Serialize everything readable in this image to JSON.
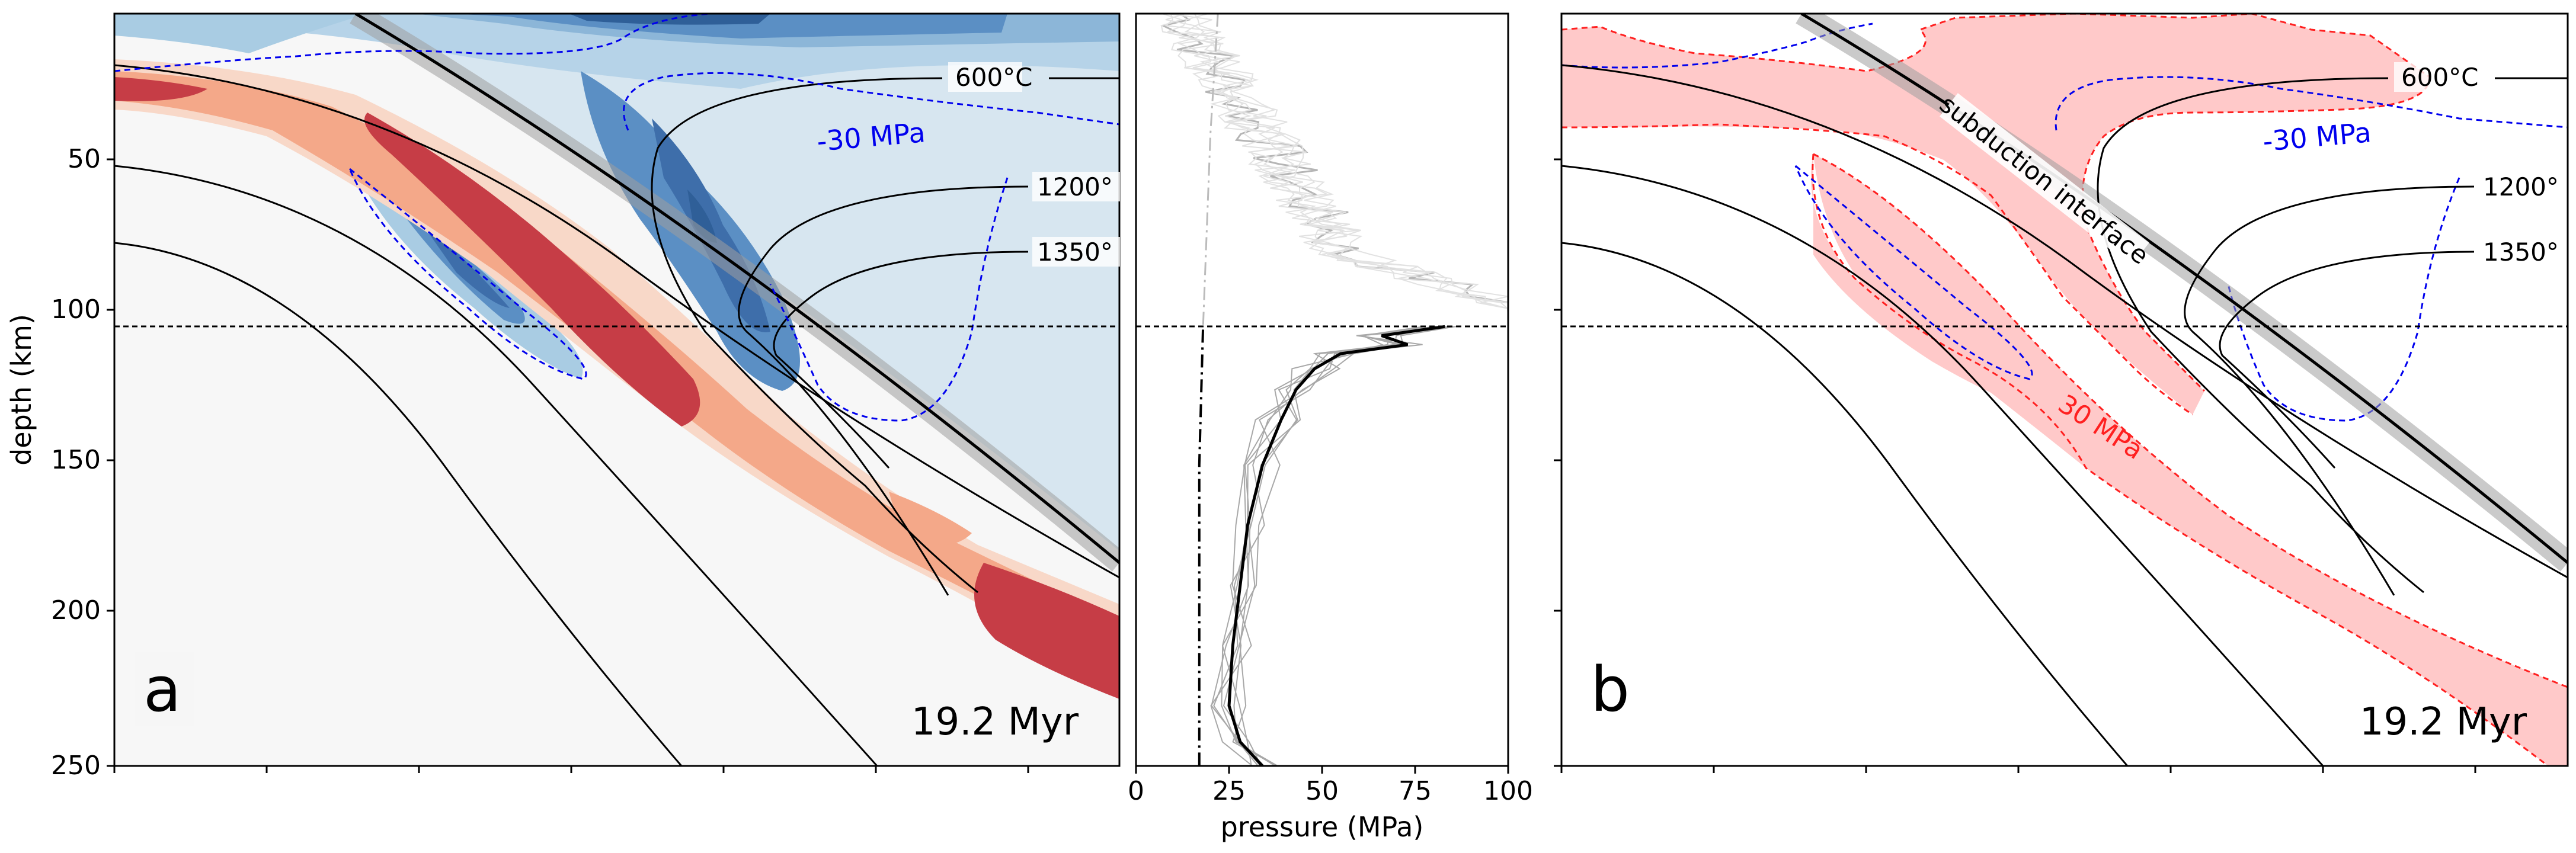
{
  "chart_data": [
    {
      "panel": "a",
      "type": "contour",
      "ylabel": "depth (km)",
      "ylim": [
        0,
        250
      ],
      "y_inverted": true,
      "yticks": [
        50,
        100,
        150,
        200,
        250
      ],
      "panel_letter": "a",
      "time_label": "19.2 Myr",
      "reference_depth_km": 105,
      "colors": {
        "tension": "#2166ac",
        "compression": "#c63d46",
        "contour_line": "#0000ee"
      },
      "annotations": [
        {
          "text": "600°C",
          "depth_km": 21
        },
        {
          "text": "1200°",
          "depth_km": 57
        },
        {
          "text": "1350°",
          "depth_km": 79
        },
        {
          "text": "-30 MPa",
          "depth_km": 40
        }
      ]
    },
    {
      "panel": "middle",
      "type": "line",
      "xlabel": "pressure (MPa)",
      "xlim": [
        0,
        100
      ],
      "xticks": [
        0,
        25,
        50,
        75,
        100
      ],
      "ylim": [
        0,
        250
      ],
      "y_inverted": true,
      "reference_depth_km": 105,
      "dashdot_reference": [
        {
          "depth_km": 0,
          "pressure_mpa": 22
        },
        {
          "depth_km": 40,
          "pressure_mpa": 20
        },
        {
          "depth_km": 105,
          "pressure_mpa": 18
        },
        {
          "depth_km": 150,
          "pressure_mpa": 17
        },
        {
          "depth_km": 250,
          "pressure_mpa": 17
        }
      ],
      "series_main": [
        {
          "depth_km": 104,
          "pressure_mpa": 83
        },
        {
          "depth_km": 107,
          "pressure_mpa": 66
        },
        {
          "depth_km": 110,
          "pressure_mpa": 73
        },
        {
          "depth_km": 113,
          "pressure_mpa": 55
        },
        {
          "depth_km": 118,
          "pressure_mpa": 48
        },
        {
          "depth_km": 125,
          "pressure_mpa": 43
        },
        {
          "depth_km": 135,
          "pressure_mpa": 39
        },
        {
          "depth_km": 150,
          "pressure_mpa": 34
        },
        {
          "depth_km": 170,
          "pressure_mpa": 30
        },
        {
          "depth_km": 190,
          "pressure_mpa": 28
        },
        {
          "depth_km": 210,
          "pressure_mpa": 26
        },
        {
          "depth_km": 230,
          "pressure_mpa": 25
        },
        {
          "depth_km": 242,
          "pressure_mpa": 28
        },
        {
          "depth_km": 250,
          "pressure_mpa": 34
        }
      ]
    },
    {
      "panel": "b",
      "type": "contour",
      "ylim": [
        0,
        250
      ],
      "y_inverted": true,
      "panel_letter": "b",
      "time_label": "19.2 Myr",
      "reference_depth_km": 105,
      "colors": {
        "fill": "#ffc9c9",
        "contour_red": "#ff2020",
        "contour_blue": "#0000ee"
      },
      "annotations": [
        {
          "text": "600°C",
          "depth_km": 21
        },
        {
          "text": "1200°",
          "depth_km": 57
        },
        {
          "text": "1350°",
          "depth_km": 79
        },
        {
          "text": "-30 MPa",
          "depth_km": 40
        },
        {
          "text": "30 MPa",
          "depth_km": 140
        },
        {
          "text": "subduction interface",
          "depth_km": 75
        }
      ]
    }
  ]
}
